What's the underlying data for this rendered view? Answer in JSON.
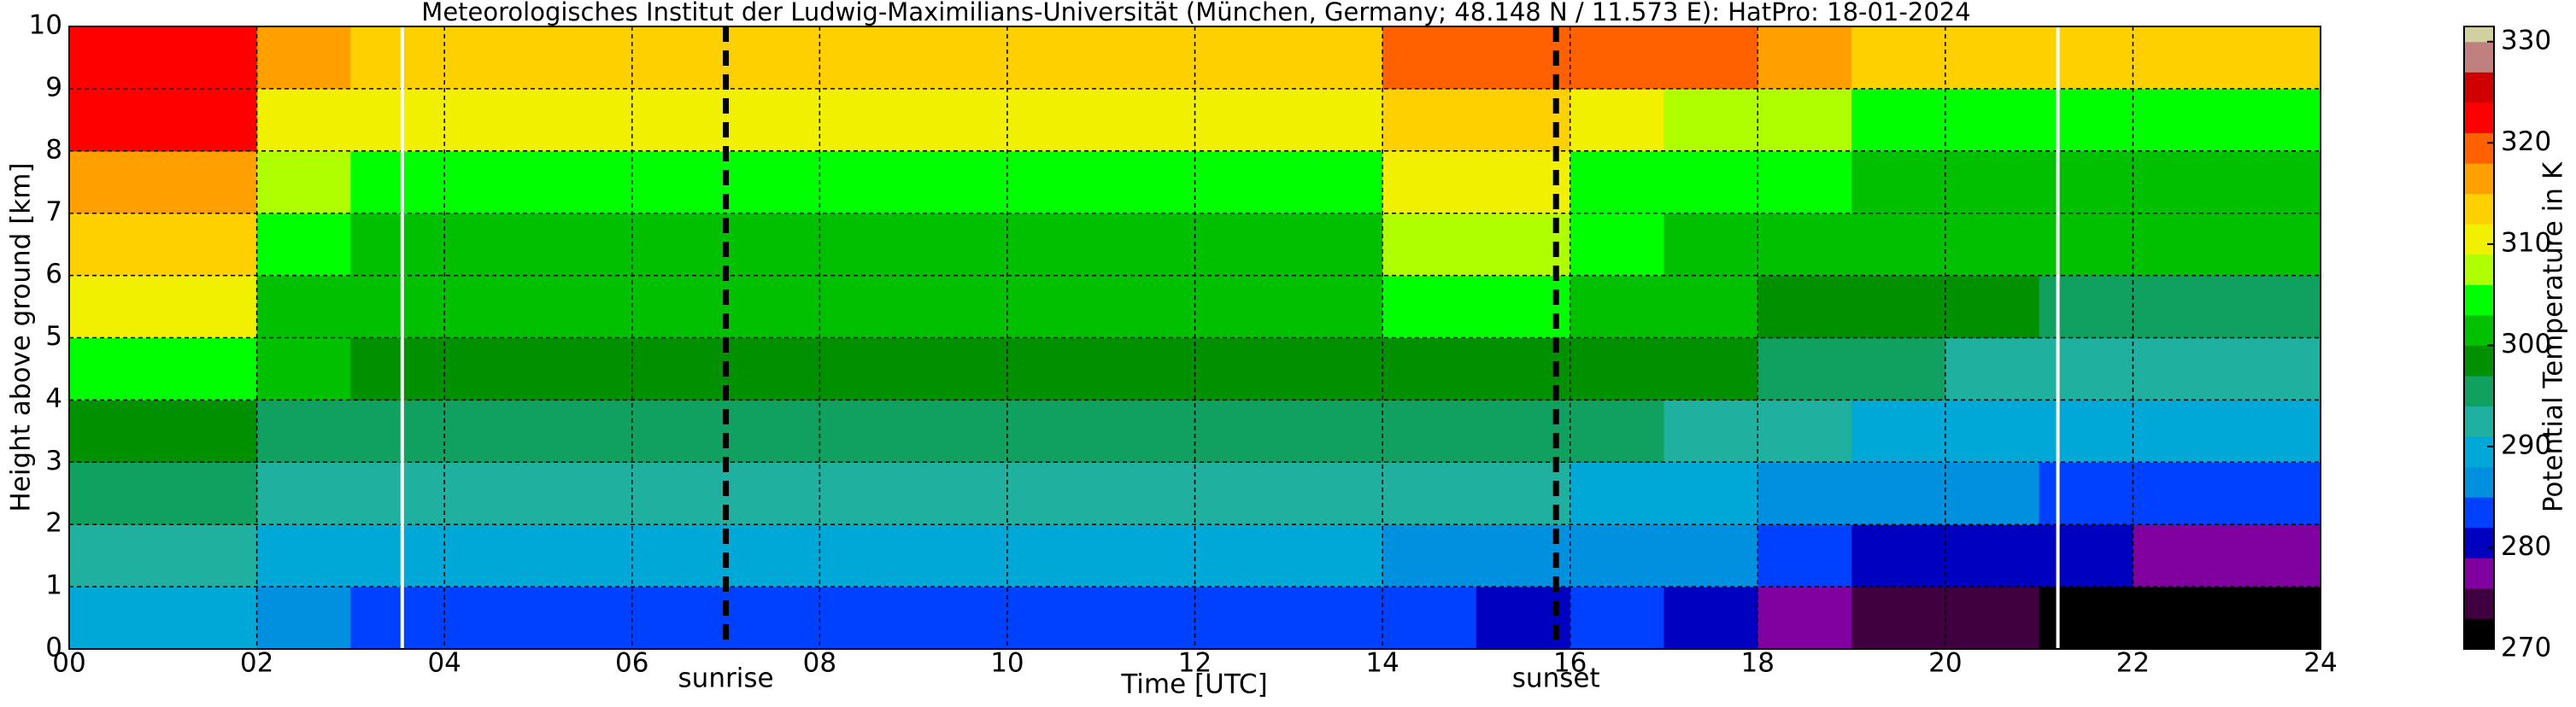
{
  "chart_data": {
    "type": "heatmap",
    "title": "Meteorologisches Institut der Ludwig-Maximilians-Universität (München, Germany; 48.148 N / 11.573 E):    HatPro: 18-01-2024",
    "x_label": "Time [UTC]",
    "y_label": "Height above ground [km]",
    "x_bins": [
      0,
      1,
      2,
      3,
      4,
      5,
      6,
      7,
      8,
      9,
      10,
      11,
      12,
      13,
      14,
      15,
      16,
      17,
      18,
      19,
      20,
      21,
      22,
      23,
      24
    ],
    "y_bins": [
      0,
      1,
      2,
      3,
      4,
      5,
      6,
      7,
      8,
      9,
      10
    ],
    "z": [
      [
        290,
        290,
        286,
        284,
        284,
        284,
        284,
        284,
        284,
        284,
        284,
        284,
        284,
        284,
        282,
        281,
        283,
        280,
        276,
        275,
        273,
        272,
        272,
        272
      ],
      [
        292,
        291,
        289,
        288,
        288,
        288,
        288,
        288,
        288,
        288,
        288,
        288,
        288,
        288,
        287,
        287,
        287,
        285,
        283,
        281,
        280,
        279,
        278,
        278
      ],
      [
        296,
        295,
        292,
        291,
        291,
        291,
        291,
        291,
        291,
        291,
        291,
        291,
        291,
        291,
        291,
        291,
        290,
        289,
        287,
        286,
        285,
        284,
        284,
        284
      ],
      [
        299,
        299,
        296,
        295,
        295,
        295,
        295,
        295,
        295,
        295,
        295,
        295,
        295,
        295,
        296,
        295,
        295,
        293,
        291,
        290,
        289,
        289,
        288,
        288
      ],
      [
        304,
        304,
        300,
        299,
        299,
        299,
        299,
        299,
        299,
        299,
        299,
        299,
        299,
        299,
        299,
        299,
        298,
        297,
        295,
        294,
        293,
        292,
        292,
        292
      ],
      [
        309,
        309,
        302,
        301,
        301,
        301,
        301,
        301,
        301,
        301,
        301,
        301,
        301,
        301,
        303,
        303,
        301,
        300,
        298,
        297,
        297,
        296,
        296,
        296
      ],
      [
        313,
        313,
        304,
        302,
        302,
        302,
        302,
        302,
        302,
        302,
        302,
        302,
        302,
        302,
        307,
        307,
        303,
        302,
        301,
        300,
        300,
        300,
        300,
        300
      ],
      [
        317,
        317,
        306,
        304,
        304,
        304,
        304,
        304,
        304,
        304,
        304,
        304,
        304,
        304,
        310,
        310,
        305,
        304,
        303,
        302,
        302,
        302,
        302,
        302
      ],
      [
        321,
        321,
        310,
        309,
        309,
        309,
        309,
        309,
        309,
        309,
        309,
        309,
        309,
        309,
        312,
        312,
        309,
        308,
        306,
        305,
        305,
        305,
        305,
        305
      ],
      [
        323,
        323,
        316,
        314,
        314,
        314,
        314,
        314,
        314,
        314,
        314,
        314,
        314,
        314,
        320,
        318,
        320,
        318,
        315,
        313,
        312,
        312,
        312,
        312
      ]
    ],
    "xlim": [
      0,
      24
    ],
    "ylim": [
      0,
      10
    ],
    "xticks": [
      {
        "value": 0,
        "label": "00"
      },
      {
        "value": 2,
        "label": "02"
      },
      {
        "value": 4,
        "label": "04"
      },
      {
        "value": 6,
        "label": "06"
      },
      {
        "value": 8,
        "label": "08"
      },
      10,
      12,
      14,
      16,
      18,
      20,
      22,
      24
    ],
    "yticks": [
      0,
      1,
      2,
      3,
      4,
      5,
      6,
      7,
      8,
      9,
      10
    ],
    "grid": true,
    "vlines": [
      {
        "x": 3.55,
        "color": "#ffffff",
        "dashed": false
      },
      {
        "x": 7.0,
        "color": "#000000",
        "dashed": true,
        "label": "sunrise"
      },
      {
        "x": 15.85,
        "color": "#000000",
        "dashed": true,
        "label": "sunset"
      },
      {
        "x": 21.2,
        "color": "#ffffff",
        "dashed": false
      }
    ],
    "colorbar": {
      "label": "Potential Temperature in K",
      "lim": [
        270,
        331.5
      ],
      "ticks": [
        270,
        280,
        290,
        300,
        310,
        320,
        330
      ],
      "stops": [
        {
          "value": 270,
          "color": "#000000"
        },
        {
          "value": 273,
          "color": "#400040"
        },
        {
          "value": 276,
          "color": "#8000a0"
        },
        {
          "value": 279,
          "color": "#0000c0"
        },
        {
          "value": 282,
          "color": "#0040ff"
        },
        {
          "value": 285,
          "color": "#0090e0"
        },
        {
          "value": 288,
          "color": "#00a8d8"
        },
        {
          "value": 291,
          "color": "#20b0a0"
        },
        {
          "value": 294,
          "color": "#10a060"
        },
        {
          "value": 297,
          "color": "#009000"
        },
        {
          "value": 300,
          "color": "#00c000"
        },
        {
          "value": 303,
          "color": "#00ff00"
        },
        {
          "value": 306,
          "color": "#b0ff00"
        },
        {
          "value": 309,
          "color": "#f0f000"
        },
        {
          "value": 312,
          "color": "#ffd000"
        },
        {
          "value": 315,
          "color": "#ffa000"
        },
        {
          "value": 318,
          "color": "#ff6000"
        },
        {
          "value": 321,
          "color": "#ff0000"
        },
        {
          "value": 324,
          "color": "#d00000"
        },
        {
          "value": 327,
          "color": "#c08080"
        },
        {
          "value": 330,
          "color": "#d0d0a0"
        }
      ]
    }
  }
}
